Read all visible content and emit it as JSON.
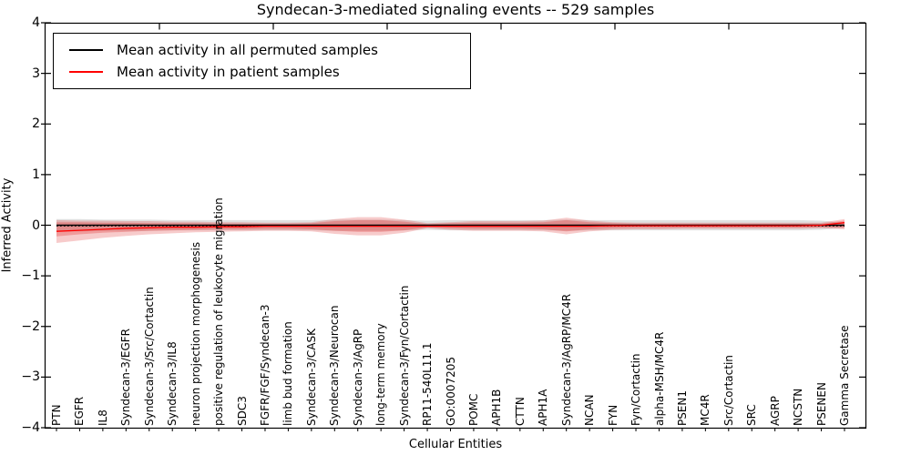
{
  "figure": {
    "title": "Syndecan-3-mediated signaling events -- 529 samples",
    "xlabel": "Cellular Entities",
    "ylabel": "Inferred Activity",
    "legend": [
      {
        "label": "Mean activity in all permuted samples",
        "color": "#000000"
      },
      {
        "label": "Mean activity in patient samples",
        "color": "#ff0000"
      }
    ]
  },
  "chart_data": {
    "type": "line",
    "title": "Syndecan-3-mediated signaling events -- 529 samples",
    "xlabel": "Cellular Entities",
    "ylabel": "Inferred Activity",
    "ylim": [
      -4,
      4
    ],
    "grid": false,
    "legend_position": "upper left",
    "yticks": [
      {
        "label": "4",
        "value": 4
      },
      {
        "label": "3",
        "value": 3
      },
      {
        "label": "2",
        "value": 2
      },
      {
        "label": "1",
        "value": 1
      },
      {
        "label": "0",
        "value": 0
      },
      {
        "label": "−1",
        "value": -1
      },
      {
        "label": "−2",
        "value": -2
      },
      {
        "label": "−3",
        "value": -3
      },
      {
        "label": "−4",
        "value": -4
      }
    ],
    "categories": [
      "PTN",
      "EGFR",
      "IL8",
      "Syndecan-3/EGFR",
      "Syndecan-3/Src/Cortactin",
      "Syndecan-3/IL8",
      "neuron projection morphogenesis",
      "positive regulation of leukocyte migration",
      "SDC3",
      "FGFR/FGF/Syndecan-3",
      "limb bud formation",
      "Syndecan-3/CASK",
      "Syndecan-3/Neurocan",
      "Syndecan-3/AgRP",
      "long-term memory",
      "Syndecan-3/Fyn/Cortactin",
      "RP11-540L11.1",
      "GO:0007205",
      "POMC",
      "APH1B",
      "CTTN",
      "APH1A",
      "Syndecan-3/AgRP/MC4R",
      "NCAN",
      "FYN",
      "Fyn/Cortactin",
      "alpha-MSH/MC4R",
      "PSEN1",
      "MC4R",
      "Src/Cortactin",
      "SRC",
      "AGRP",
      "NCSTN",
      "PSENEN",
      "Gamma Secretase"
    ],
    "series": [
      {
        "name": "Mean activity in all permuted samples",
        "color": "#000000",
        "style": "solid",
        "width": 1.4,
        "values": [
          0,
          0,
          0,
          0,
          0,
          0,
          0,
          0,
          0,
          0,
          0,
          0,
          0,
          0,
          0,
          0,
          0,
          0,
          0,
          0,
          0,
          0,
          0,
          0,
          0,
          0,
          0,
          0,
          0,
          0,
          0,
          0,
          0,
          0,
          0
        ]
      },
      {
        "name": "permuted-mean-dotted",
        "color": "#000000",
        "style": "dotted",
        "width": 1.2,
        "values": [
          -0.015,
          -0.015,
          -0.015,
          -0.015,
          -0.015,
          -0.015,
          -0.015,
          -0.015,
          -0.015,
          -0.015,
          -0.015,
          -0.015,
          -0.015,
          -0.015,
          -0.015,
          -0.015,
          -0.015,
          -0.015,
          -0.015,
          -0.015,
          -0.015,
          -0.015,
          -0.015,
          -0.015,
          -0.015,
          -0.015,
          -0.015,
          -0.015,
          -0.015,
          -0.015,
          -0.015,
          -0.015,
          -0.015,
          -0.015,
          -0.015
        ]
      },
      {
        "name": "Mean activity in patient samples",
        "color": "#ff0000",
        "style": "solid",
        "width": 1.3,
        "values": [
          -0.12,
          -0.1,
          -0.08,
          -0.06,
          -0.05,
          -0.04,
          -0.04,
          -0.03,
          -0.03,
          -0.02,
          -0.02,
          -0.02,
          -0.02,
          -0.02,
          -0.02,
          -0.02,
          -0.02,
          -0.02,
          -0.02,
          -0.02,
          -0.02,
          -0.02,
          -0.02,
          -0.02,
          -0.01,
          -0.01,
          -0.01,
          -0.01,
          -0.01,
          -0.01,
          -0.01,
          -0.01,
          -0.01,
          0.0,
          0.05
        ]
      }
    ],
    "bands": [
      {
        "name": "permuted-samples-spread",
        "color": "#555555",
        "opacity": 0.18,
        "upper": [
          0.12,
          0.12,
          0.11,
          0.11,
          0.11,
          0.1,
          0.1,
          0.1,
          0.1,
          0.1,
          0.1,
          0.1,
          0.11,
          0.11,
          0.11,
          0.1,
          0.09,
          0.1,
          0.1,
          0.1,
          0.1,
          0.1,
          0.11,
          0.1,
          0.1,
          0.1,
          0.1,
          0.1,
          0.1,
          0.1,
          0.1,
          0.1,
          0.1,
          0.09,
          0.05
        ],
        "lower": [
          -0.12,
          -0.12,
          -0.11,
          -0.11,
          -0.11,
          -0.1,
          -0.1,
          -0.1,
          -0.1,
          -0.1,
          -0.1,
          -0.1,
          -0.11,
          -0.11,
          -0.11,
          -0.1,
          -0.09,
          -0.1,
          -0.1,
          -0.1,
          -0.1,
          -0.1,
          -0.11,
          -0.1,
          -0.1,
          -0.1,
          -0.1,
          -0.1,
          -0.1,
          -0.1,
          -0.1,
          -0.1,
          -0.1,
          -0.09,
          -0.05
        ]
      },
      {
        "name": "patient-samples-spread-outer",
        "color": "#e03030",
        "opacity": 0.25,
        "upper": [
          0.1,
          0.09,
          0.09,
          0.08,
          0.08,
          0.07,
          0.07,
          0.06,
          0.06,
          0.05,
          0.05,
          0.06,
          0.12,
          0.16,
          0.16,
          0.11,
          0.04,
          0.06,
          0.08,
          0.08,
          0.08,
          0.09,
          0.15,
          0.09,
          0.06,
          0.05,
          0.05,
          0.05,
          0.05,
          0.05,
          0.05,
          0.05,
          0.05,
          0.05,
          0.12
        ],
        "lower": [
          -0.35,
          -0.3,
          -0.25,
          -0.21,
          -0.18,
          -0.16,
          -0.14,
          -0.13,
          -0.12,
          -0.11,
          -0.11,
          -0.12,
          -0.17,
          -0.2,
          -0.2,
          -0.15,
          -0.06,
          -0.09,
          -0.11,
          -0.11,
          -0.11,
          -0.12,
          -0.18,
          -0.12,
          -0.09,
          -0.08,
          -0.08,
          -0.07,
          -0.07,
          -0.07,
          -0.07,
          -0.07,
          -0.07,
          -0.06,
          -0.08
        ]
      },
      {
        "name": "patient-samples-spread-inner",
        "color": "#e03030",
        "opacity": 0.3,
        "upper": [
          0.06,
          0.06,
          0.05,
          0.05,
          0.04,
          0.04,
          0.04,
          0.03,
          0.03,
          0.03,
          0.03,
          0.04,
          0.08,
          0.1,
          0.1,
          0.07,
          0.02,
          0.04,
          0.05,
          0.05,
          0.05,
          0.06,
          0.1,
          0.06,
          0.04,
          0.03,
          0.03,
          0.03,
          0.03,
          0.03,
          0.03,
          0.03,
          0.03,
          0.03,
          0.09
        ],
        "lower": [
          -0.22,
          -0.18,
          -0.15,
          -0.13,
          -0.11,
          -0.1,
          -0.09,
          -0.08,
          -0.08,
          -0.07,
          -0.07,
          -0.08,
          -0.11,
          -0.13,
          -0.13,
          -0.1,
          -0.04,
          -0.06,
          -0.07,
          -0.07,
          -0.07,
          -0.08,
          -0.12,
          -0.08,
          -0.06,
          -0.05,
          -0.05,
          -0.05,
          -0.05,
          -0.05,
          -0.05,
          -0.05,
          -0.05,
          -0.04,
          -0.05
        ]
      }
    ]
  }
}
